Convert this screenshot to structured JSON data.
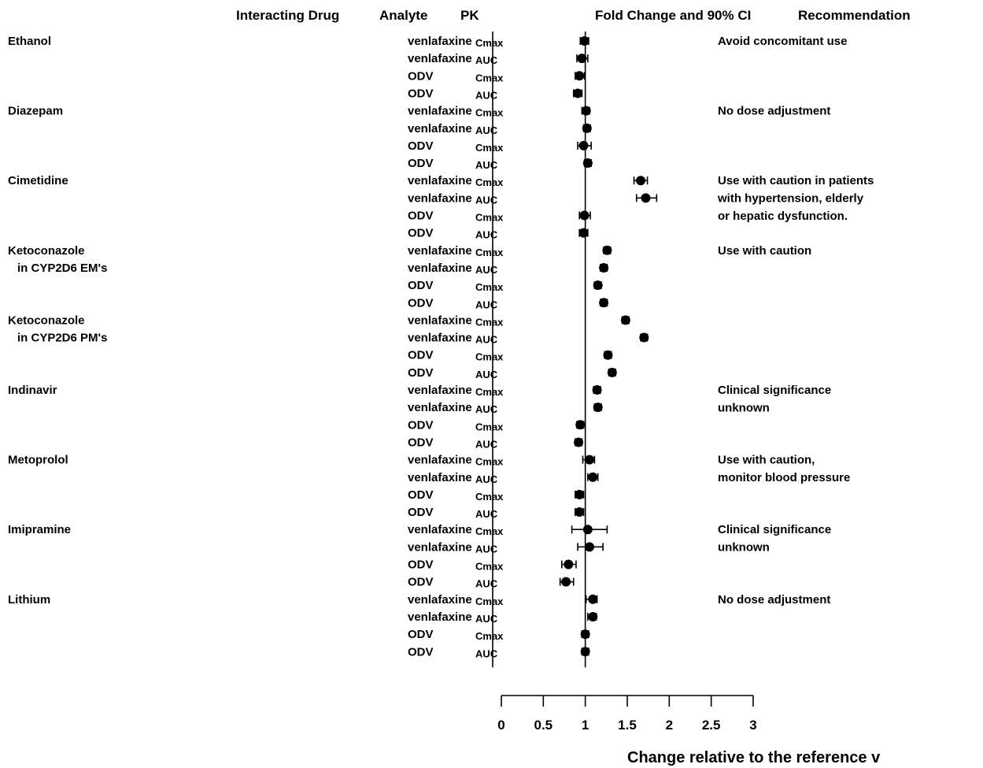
{
  "chart_data": {
    "type": "scatter",
    "headers": {
      "drug": "Interacting Drug",
      "analyte": "Analyte",
      "pk": "PK",
      "fold": "Fold Change and 90% CI",
      "rec": "Recommendation"
    },
    "xlabel": "Change relative to the reference v",
    "xlim": [
      0,
      3
    ],
    "xticks": [
      0,
      0.5,
      1,
      1.5,
      2,
      2.5,
      3
    ],
    "xtick_labels": [
      "0",
      "0.5",
      "1",
      "1.5",
      "2",
      "2.5",
      "3"
    ],
    "reference_line": 1,
    "groups": [
      {
        "drug": [
          "Ethanol"
        ],
        "recommendation": [
          "Avoid concomitant use"
        ],
        "rows": [
          {
            "analyte": "venlafaxine",
            "pk": "Cmax",
            "value": 0.99,
            "ci": [
              0.94,
              1.04
            ]
          },
          {
            "analyte": "venlafaxine",
            "pk": "AUC",
            "value": 0.96,
            "ci": [
              0.9,
              1.03
            ]
          },
          {
            "analyte": "ODV",
            "pk": "Cmax",
            "value": 0.93,
            "ci": [
              0.88,
              0.99
            ]
          },
          {
            "analyte": "ODV",
            "pk": "AUC",
            "value": 0.91,
            "ci": [
              0.86,
              0.96
            ]
          }
        ]
      },
      {
        "drug": [
          "Diazepam"
        ],
        "recommendation": [
          "No dose adjustment"
        ],
        "rows": [
          {
            "analyte": "venlafaxine",
            "pk": "Cmax",
            "value": 1.01,
            "ci": [
              0.96,
              1.05
            ]
          },
          {
            "analyte": "venlafaxine",
            "pk": "AUC",
            "value": 1.02,
            "ci": [
              0.98,
              1.06
            ]
          },
          {
            "analyte": "ODV",
            "pk": "Cmax",
            "value": 0.98,
            "ci": [
              0.91,
              1.07
            ]
          },
          {
            "analyte": "ODV",
            "pk": "AUC",
            "value": 1.03,
            "ci": [
              0.99,
              1.07
            ]
          }
        ]
      },
      {
        "drug": [
          "Cimetidine"
        ],
        "recommendation": [
          "Use with caution in patients",
          "with hypertension, elderly",
          "or hepatic dysfunction."
        ],
        "rows": [
          {
            "analyte": "venlafaxine",
            "pk": "Cmax",
            "value": 1.66,
            "ci": [
              1.58,
              1.74
            ]
          },
          {
            "analyte": "venlafaxine",
            "pk": "AUC",
            "value": 1.72,
            "ci": [
              1.61,
              1.85
            ]
          },
          {
            "analyte": "ODV",
            "pk": "Cmax",
            "value": 0.99,
            "ci": [
              0.93,
              1.06
            ]
          },
          {
            "analyte": "ODV",
            "pk": "AUC",
            "value": 0.98,
            "ci": [
              0.93,
              1.03
            ]
          }
        ]
      },
      {
        "drug": [
          "Ketoconazole",
          "in CYP2D6 EM's"
        ],
        "recommendation": [
          "Use with caution"
        ],
        "rows": [
          {
            "analyte": "venlafaxine",
            "pk": "Cmax",
            "value": 1.26,
            "ci": [
              1.22,
              1.3
            ]
          },
          {
            "analyte": "venlafaxine",
            "pk": "AUC",
            "value": 1.22,
            "ci": [
              1.18,
              1.26
            ]
          },
          {
            "analyte": "ODV",
            "pk": "Cmax",
            "value": 1.15,
            "ci": [
              1.11,
              1.19
            ]
          },
          {
            "analyte": "ODV",
            "pk": "AUC",
            "value": 1.22,
            "ci": [
              1.18,
              1.26
            ]
          }
        ]
      },
      {
        "drug": [
          "Ketoconazole",
          "in CYP2D6 PM's"
        ],
        "recommendation": [],
        "rows": [
          {
            "analyte": "venlafaxine",
            "pk": "Cmax",
            "value": 1.48,
            "ci": [
              1.44,
              1.52
            ]
          },
          {
            "analyte": "venlafaxine",
            "pk": "AUC",
            "value": 1.7,
            "ci": [
              1.66,
              1.74
            ]
          },
          {
            "analyte": "ODV",
            "pk": "Cmax",
            "value": 1.27,
            "ci": [
              1.23,
              1.31
            ]
          },
          {
            "analyte": "ODV",
            "pk": "AUC",
            "value": 1.32,
            "ci": [
              1.28,
              1.36
            ]
          }
        ]
      },
      {
        "drug": [
          "Indinavir"
        ],
        "recommendation": [
          "Clinical significance",
          "unknown"
        ],
        "rows": [
          {
            "analyte": "venlafaxine",
            "pk": "Cmax",
            "value": 1.14,
            "ci": [
              1.1,
              1.18
            ]
          },
          {
            "analyte": "venlafaxine",
            "pk": "AUC",
            "value": 1.15,
            "ci": [
              1.11,
              1.19
            ]
          },
          {
            "analyte": "ODV",
            "pk": "Cmax",
            "value": 0.94,
            "ci": [
              0.9,
              0.98
            ]
          },
          {
            "analyte": "ODV",
            "pk": "AUC",
            "value": 0.92,
            "ci": [
              0.88,
              0.96
            ]
          }
        ]
      },
      {
        "drug": [
          "Metoprolol"
        ],
        "recommendation": [
          "Use with caution,",
          "monitor blood pressure"
        ],
        "rows": [
          {
            "analyte": "venlafaxine",
            "pk": "Cmax",
            "value": 1.05,
            "ci": [
              0.97,
              1.11
            ]
          },
          {
            "analyte": "venlafaxine",
            "pk": "AUC",
            "value": 1.09,
            "ci": [
              1.03,
              1.15
            ]
          },
          {
            "analyte": "ODV",
            "pk": "Cmax",
            "value": 0.93,
            "ci": [
              0.88,
              0.98
            ]
          },
          {
            "analyte": "ODV",
            "pk": "AUC",
            "value": 0.93,
            "ci": [
              0.88,
              0.98
            ]
          }
        ]
      },
      {
        "drug": [
          "Imipramine"
        ],
        "recommendation": [
          "Clinical significance",
          "unknown"
        ],
        "rows": [
          {
            "analyte": "venlafaxine",
            "pk": "Cmax",
            "value": 1.03,
            "ci": [
              0.84,
              1.26
            ]
          },
          {
            "analyte": "venlafaxine",
            "pk": "AUC",
            "value": 1.05,
            "ci": [
              0.91,
              1.21
            ]
          },
          {
            "analyte": "ODV",
            "pk": "Cmax",
            "value": 0.8,
            "ci": [
              0.72,
              0.89
            ]
          },
          {
            "analyte": "ODV",
            "pk": "AUC",
            "value": 0.77,
            "ci": [
              0.7,
              0.86
            ]
          }
        ]
      },
      {
        "drug": [
          "Lithium"
        ],
        "recommendation": [
          "No dose adjustment"
        ],
        "rows": [
          {
            "analyte": "venlafaxine",
            "pk": "Cmax",
            "value": 1.09,
            "ci": [
              1.01,
              1.14
            ]
          },
          {
            "analyte": "venlafaxine",
            "pk": "AUC",
            "value": 1.09,
            "ci": [
              1.03,
              1.13
            ]
          },
          {
            "analyte": "ODV",
            "pk": "Cmax",
            "value": 1.0,
            "ci": [
              0.96,
              1.04
            ]
          },
          {
            "analyte": "ODV",
            "pk": "AUC",
            "value": 1.0,
            "ci": [
              0.96,
              1.04
            ]
          }
        ]
      }
    ]
  }
}
